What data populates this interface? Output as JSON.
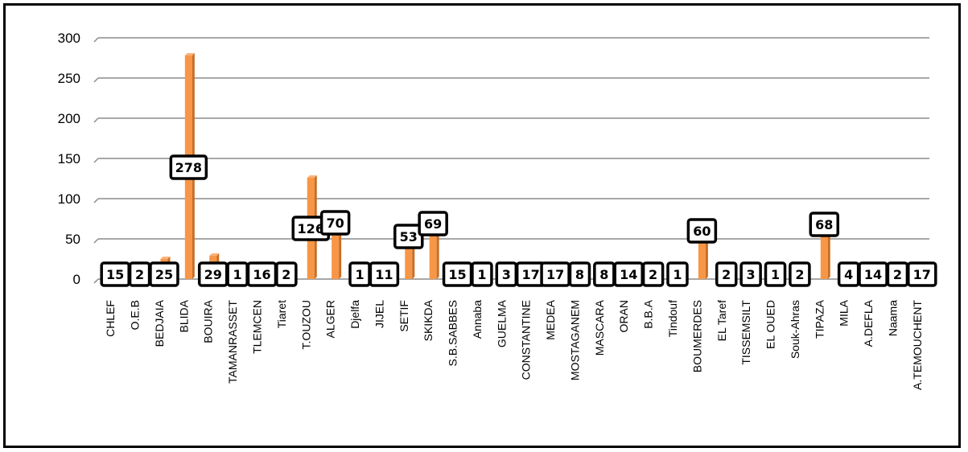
{
  "chart_data": {
    "type": "bar",
    "categories": [
      "CHLEF",
      "O.E.B",
      "BEDJAIA",
      "BLIDA",
      "BOUIRA",
      "TAMANRASSET",
      "TLEMCEN",
      "Tiaret",
      "T.OUZOU",
      "ALGER",
      "Djelfa",
      "JIJEL",
      "SETIF",
      "SKIKDA",
      "S.B.SABBES",
      "Annaba",
      "GUELMA",
      "CONSTANTINE",
      "MEDEA",
      "MOSTAGANEM",
      "MASCARA",
      "ORAN",
      "B.B.A",
      "Tindouf",
      "BOUMERDES",
      "EL Taref",
      "TISSEMSILT",
      "EL OUED",
      "Souk-Ahras",
      "TIPAZA",
      "MILA",
      "A.DEFLA",
      "Naama",
      "A.TEMOUCHENT"
    ],
    "values": [
      15,
      2,
      25,
      278,
      29,
      1,
      16,
      2,
      126,
      70,
      1,
      11,
      53,
      69,
      15,
      1,
      3,
      17,
      17,
      8,
      8,
      14,
      2,
      1,
      60,
      2,
      3,
      1,
      2,
      68,
      4,
      14,
      2,
      17
    ],
    "yticks": [
      "0",
      "50",
      "100",
      "150",
      "200",
      "250",
      "300"
    ],
    "ylim": [
      0,
      300
    ],
    "grid": true,
    "bar_color": "#F79646"
  }
}
